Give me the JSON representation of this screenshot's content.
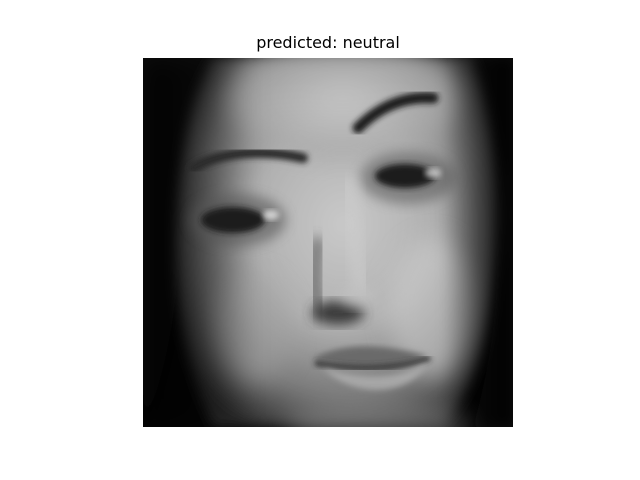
{
  "figure": {
    "title": "predicted: neutral"
  },
  "image": {
    "content": "grayscale-face-crop",
    "colormap": "gray",
    "colors": {
      "background": "#ffffff",
      "title_text": "#000000",
      "image_dark": "#000000",
      "image_light": "#d8d8d8"
    }
  }
}
